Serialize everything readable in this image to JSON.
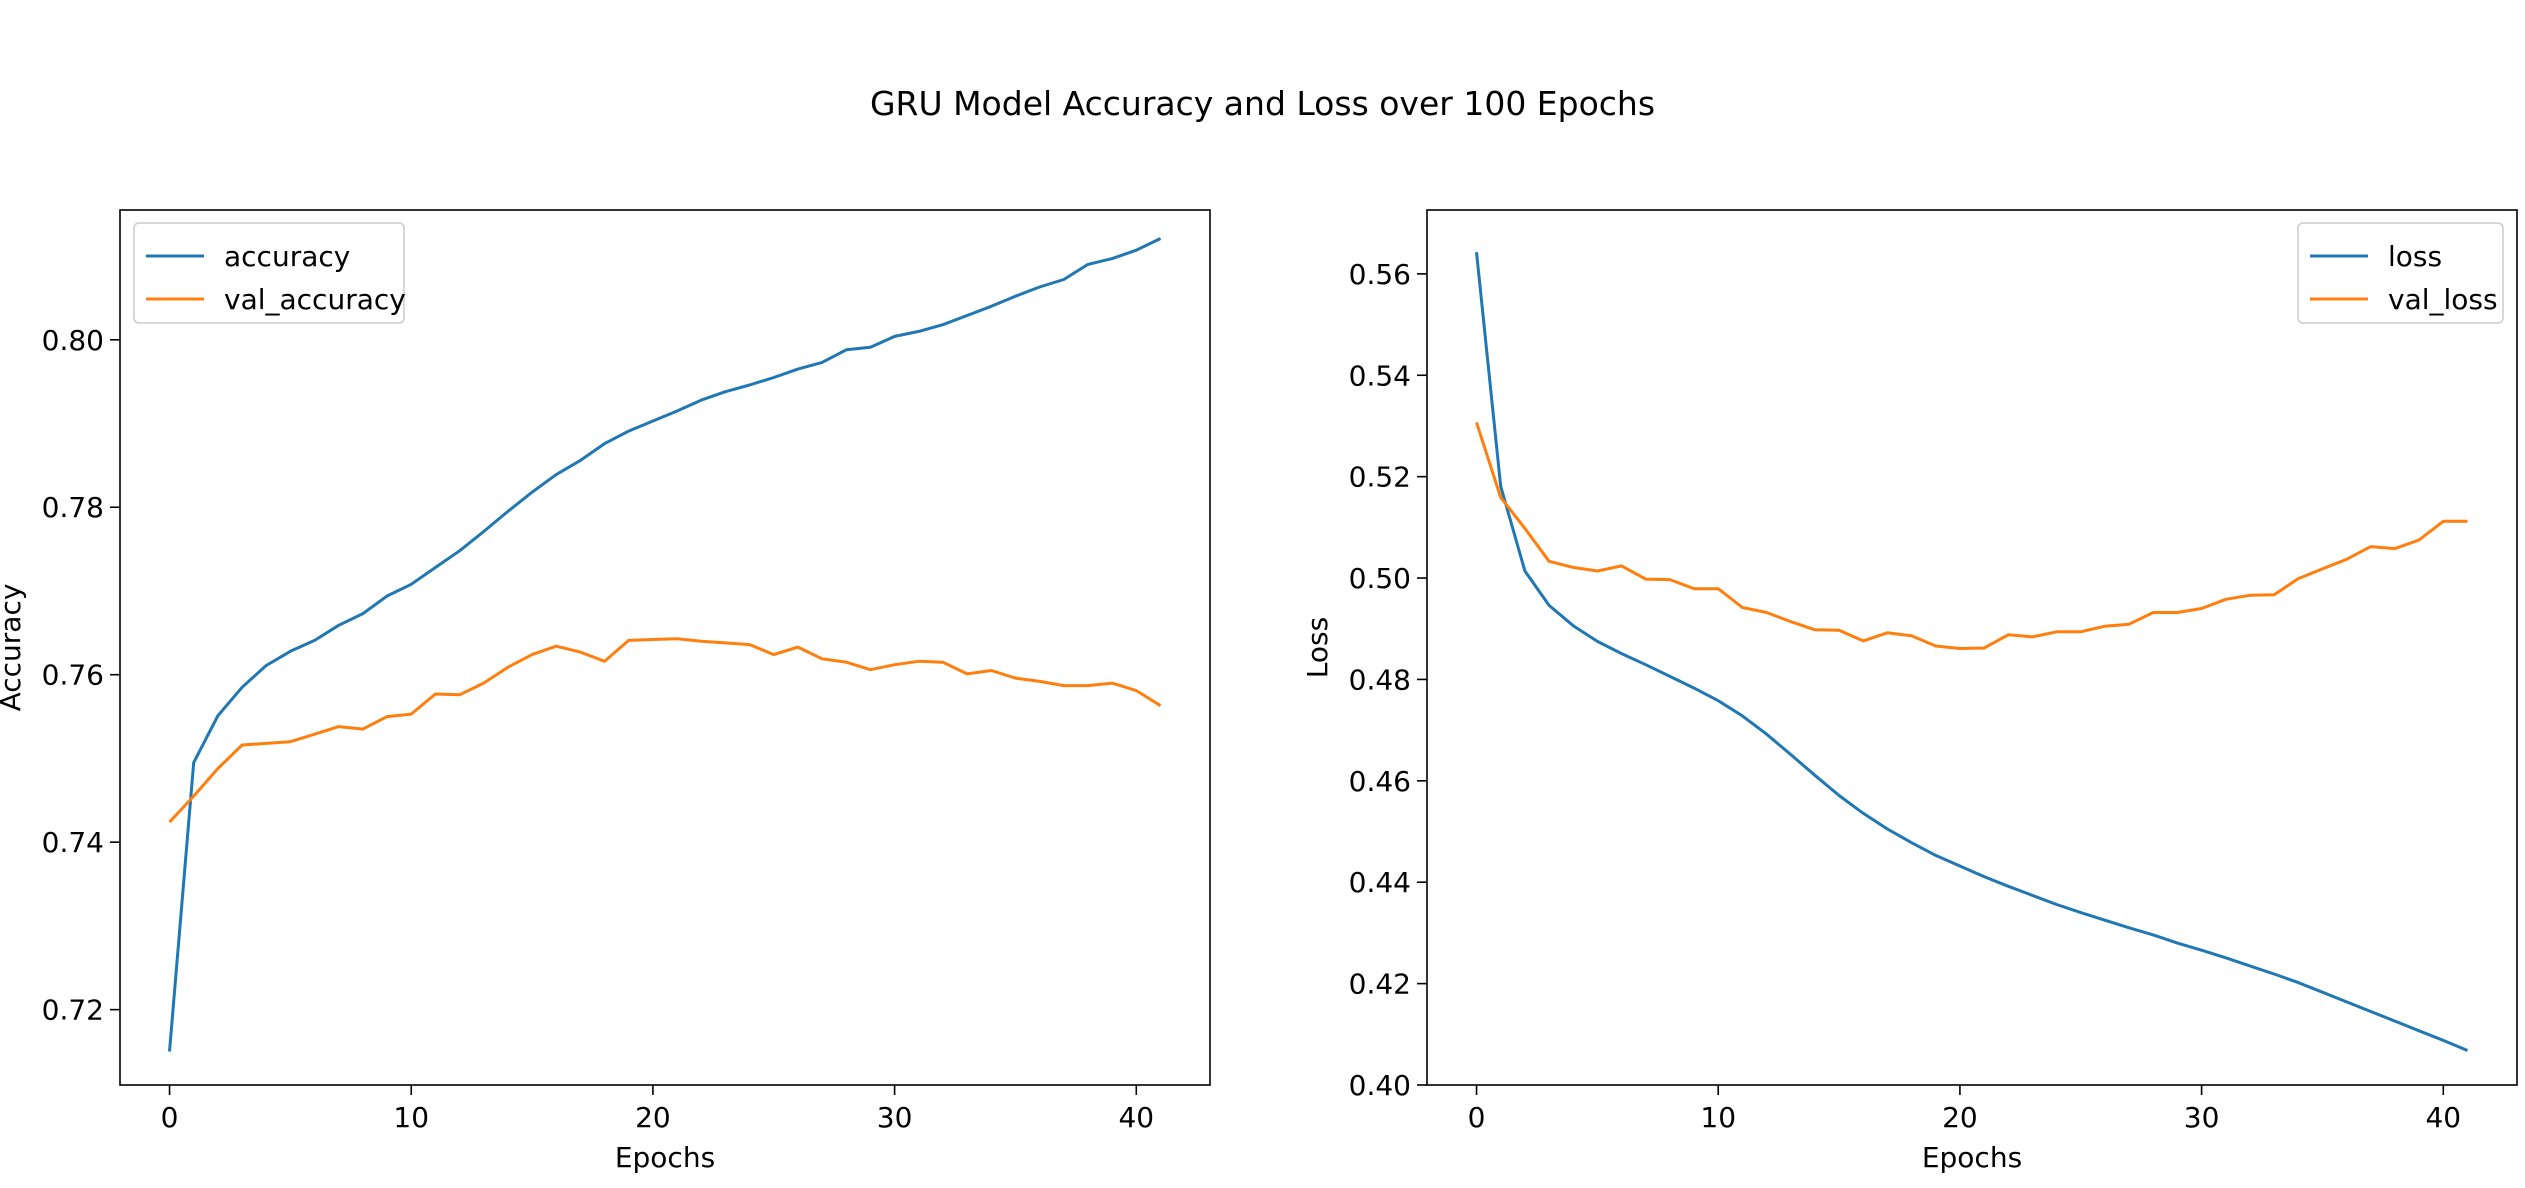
{
  "figure": {
    "title": "GRU Model Accuracy and Loss over 100 Epochs"
  },
  "chart_data": [
    {
      "type": "line",
      "title": "",
      "xlabel": "Epochs",
      "ylabel": "Accuracy",
      "xlim": [
        -2.05,
        43.05
      ],
      "ylim": [
        0.711,
        0.8155
      ],
      "xticks": [
        0,
        10,
        20,
        30,
        40
      ],
      "yticks": [
        0.72,
        0.74,
        0.76,
        0.78,
        0.8
      ],
      "tick_decimals": 2,
      "grid": false,
      "legend_position": "upper left",
      "x": [
        0,
        1,
        2,
        3,
        4,
        5,
        6,
        7,
        8,
        9,
        10,
        11,
        12,
        13,
        14,
        15,
        16,
        17,
        18,
        19,
        20,
        21,
        22,
        23,
        24,
        25,
        26,
        27,
        28,
        29,
        30,
        31,
        32,
        33,
        34,
        35,
        36,
        37,
        38,
        39,
        40,
        41
      ],
      "series": [
        {
          "name": "accuracy",
          "color": "#1f77b4",
          "values": [
            0.715,
            0.7495,
            0.7551,
            0.7585,
            0.7611,
            0.7628,
            0.7641,
            0.7659,
            0.7673,
            0.7694,
            0.7708,
            0.7728,
            0.7748,
            0.7771,
            0.7795,
            0.7818,
            0.7839,
            0.7856,
            0.7876,
            0.7891,
            0.7903,
            0.7915,
            0.7928,
            0.7938,
            0.7946,
            0.7955,
            0.7965,
            0.7973,
            0.7988,
            0.7991,
            0.8004,
            0.801,
            0.8018,
            0.8029,
            0.804,
            0.8052,
            0.8063,
            0.8072,
            0.809,
            0.8097,
            0.8107,
            0.8121
          ]
        },
        {
          "name": "val_accuracy",
          "color": "#ff7f0e",
          "values": [
            0.7424,
            0.7455,
            0.7488,
            0.7516,
            0.7518,
            0.752,
            0.7529,
            0.7538,
            0.7535,
            0.755,
            0.7553,
            0.7577,
            0.7576,
            0.759,
            0.7609,
            0.7624,
            0.7634,
            0.7627,
            0.7616,
            0.7641,
            0.7642,
            0.7643,
            0.764,
            0.7638,
            0.7636,
            0.7624,
            0.7633,
            0.7619,
            0.7615,
            0.7606,
            0.7612,
            0.7616,
            0.7615,
            0.7601,
            0.7605,
            0.7596,
            0.7592,
            0.7587,
            0.7587,
            0.759,
            0.7581,
            0.7563
          ]
        }
      ]
    },
    {
      "type": "line",
      "title": "",
      "xlabel": "Epochs",
      "ylabel": "Loss",
      "xlim": [
        -2.05,
        43.05
      ],
      "ylim": [
        0.4,
        0.5726
      ],
      "xticks": [
        0,
        10,
        20,
        30,
        40
      ],
      "yticks": [
        0.4,
        0.42,
        0.44,
        0.46,
        0.48,
        0.5,
        0.52,
        0.54,
        0.56
      ],
      "tick_decimals": 2,
      "grid": false,
      "legend_position": "upper right",
      "x": [
        0,
        1,
        2,
        3,
        4,
        5,
        6,
        7,
        8,
        9,
        10,
        11,
        12,
        13,
        14,
        15,
        16,
        17,
        18,
        19,
        20,
        21,
        22,
        23,
        24,
        25,
        26,
        27,
        28,
        29,
        30,
        31,
        32,
        33,
        34,
        35,
        36,
        37,
        38,
        39,
        40,
        41
      ],
      "series": [
        {
          "name": "loss",
          "color": "#1f77b4",
          "values": [
            0.5643,
            0.5181,
            0.5014,
            0.4946,
            0.4906,
            0.4875,
            0.4851,
            0.4829,
            0.4806,
            0.4783,
            0.4758,
            0.4728,
            0.4692,
            0.4652,
            0.4611,
            0.4571,
            0.4536,
            0.4505,
            0.4478,
            0.4453,
            0.4432,
            0.4411,
            0.4392,
            0.4374,
            0.4356,
            0.434,
            0.4325,
            0.431,
            0.4296,
            0.428,
            0.4266,
            0.4251,
            0.4235,
            0.4219,
            0.4202,
            0.4183,
            0.4164,
            0.4145,
            0.4126,
            0.4107,
            0.4088,
            0.4068
          ]
        },
        {
          "name": "val_loss",
          "color": "#ff7f0e",
          "values": [
            0.5307,
            0.5159,
            0.5098,
            0.5033,
            0.5021,
            0.5014,
            0.5024,
            0.4998,
            0.4997,
            0.4979,
            0.4979,
            0.4942,
            0.4932,
            0.4914,
            0.4898,
            0.4897,
            0.4876,
            0.4892,
            0.4886,
            0.4866,
            0.4861,
            0.4862,
            0.4888,
            0.4884,
            0.4894,
            0.4894,
            0.4905,
            0.4909,
            0.4932,
            0.4932,
            0.494,
            0.4958,
            0.4966,
            0.4967,
            0.4999,
            0.5018,
            0.5037,
            0.5062,
            0.5058,
            0.5075,
            0.5112,
            0.5112
          ]
        }
      ]
    }
  ]
}
